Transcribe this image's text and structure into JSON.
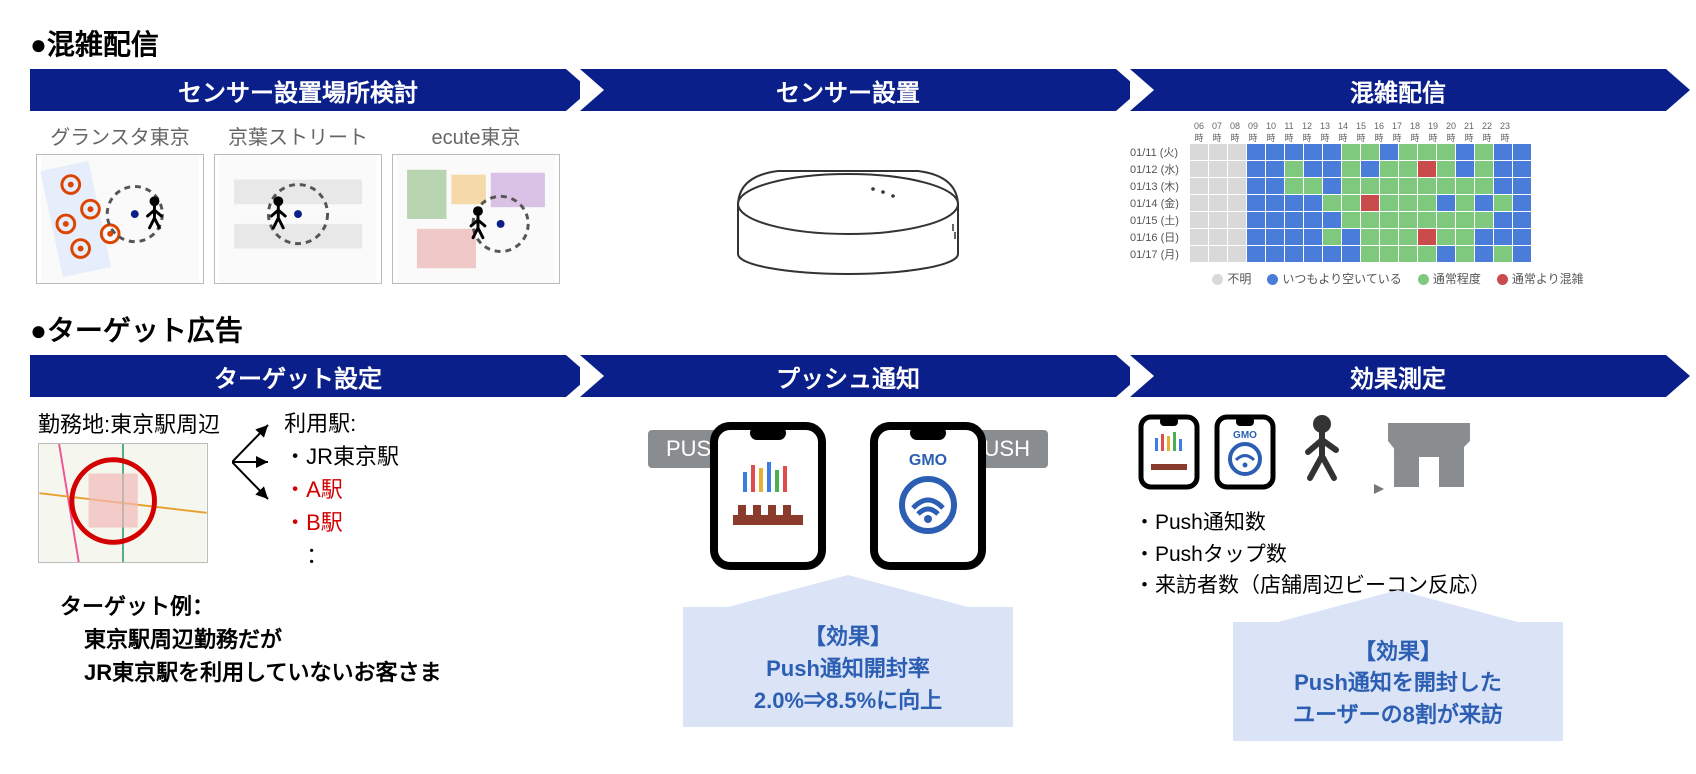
{
  "colors": {
    "banner": "#0b1f8a",
    "effect_bg": "#dbe4f6",
    "effect_text": "#2c5fb3",
    "push_tag": "#8a8d8f",
    "red": "#d40000",
    "heat_unknown": "#d9d9d9",
    "heat_empty": "#4a7dd9",
    "heat_normal": "#7fc97f",
    "heat_crowd": "#c94b4b"
  },
  "s1": {
    "title": "●混雑配信",
    "banner1": "センサー設置場所検討",
    "banner2": "センサー設置",
    "banner3": "混雑配信",
    "map_labels": [
      "グランスタ東京",
      "京葉ストリート",
      "ecute東京"
    ],
    "heatmap": {
      "hours": [
        "06時",
        "07時",
        "08時",
        "09時",
        "10時",
        "11時",
        "12時",
        "13時",
        "14時",
        "15時",
        "16時",
        "17時",
        "18時",
        "19時",
        "20時",
        "21時",
        "22時",
        "23時"
      ],
      "rows": [
        {
          "label": "01/11 (火)",
          "cells": "uuueeeeennennnenee"
        },
        {
          "label": "01/12 (水)",
          "cells": "uuueeneenenncnenee"
        },
        {
          "label": "01/13 (木)",
          "cells": "uuueennennnnnnnnee"
        },
        {
          "label": "01/14 (金)",
          "cells": "uuueeeenncnnnenene"
        },
        {
          "label": "01/15 (土)",
          "cells": "uuueeeeennnnnnnnee"
        },
        {
          "label": "01/16 (日)",
          "cells": "uuueeeenennncnneee"
        },
        {
          "label": "01/17 (月)",
          "cells": "uuueeeeeennnnenene"
        }
      ],
      "legend": [
        {
          "c": "#d9d9d9",
          "t": "不明"
        },
        {
          "c": "#4a7dd9",
          "t": "いつもより空いている"
        },
        {
          "c": "#7fc97f",
          "t": "通常程度"
        },
        {
          "c": "#c94b4b",
          "t": "通常より混雑"
        }
      ]
    }
  },
  "s2": {
    "title": "●ターゲット広告",
    "banner1": "ターゲット設定",
    "banner2": "プッシュ通知",
    "banner3": "効果測定",
    "work_label": "勤務地:東京駅周辺",
    "station_header": "利用駅:",
    "stations": [
      {
        "t": "・JR東京駅",
        "red": false
      },
      {
        "t": "・A駅",
        "red": true
      },
      {
        "t": "・B駅",
        "red": true
      },
      {
        "t": "　：",
        "red": false
      }
    ],
    "example_title": "ターゲット例：",
    "example_line1": "東京駅周辺勤務だが",
    "example_line2": "JR東京駅を利用していないお客さま",
    "push_label": "PUSH",
    "gmo_label": "GMO",
    "metrics": [
      "・Push通知数",
      "・Pushタップ数",
      "・来訪者数（店舗周辺ビーコン反応）"
    ],
    "effect1": {
      "h": "【効果】",
      "l1": "Push通知開封率",
      "l2": "2.0%⇒8.5%に向上"
    },
    "effect2": {
      "h": "【効果】",
      "l1": "Push通知を開封した",
      "l2": "ユーザーの8割が来訪"
    }
  }
}
